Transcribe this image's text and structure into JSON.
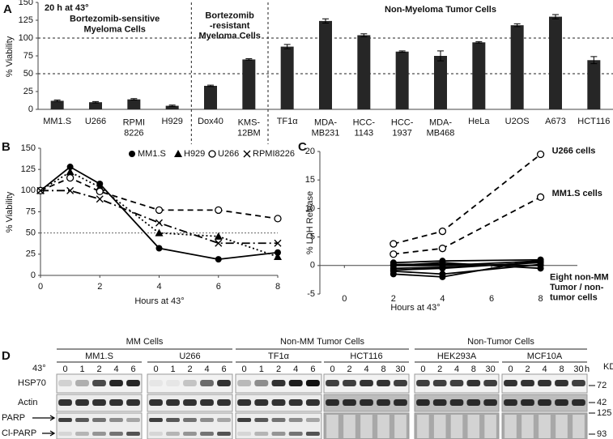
{
  "chart_data": [
    {
      "type": "bar",
      "panel": "A",
      "title": "20 h at 43°",
      "y_label": "% Viability",
      "categories": [
        "MM1.S",
        "U266",
        "RPMI\n8226",
        "H929",
        "Dox40",
        "KMS-\n12BM",
        "TF1α",
        "MDA-\nMB231",
        "HCC-\n1143",
        "HCC-\n1937",
        "MDA-\nMB468",
        "HeLa",
        "U2OS",
        "A673",
        "HCT116"
      ],
      "values": [
        12,
        10,
        14,
        5,
        33,
        70,
        88,
        124,
        104,
        81,
        75,
        94,
        118,
        130,
        69
      ],
      "errors": [
        1,
        1,
        1,
        1,
        1,
        1,
        3,
        3,
        2,
        1,
        7,
        1,
        2,
        3,
        5
      ],
      "color": "#262626",
      "ylim": [
        0,
        150
      ],
      "yticks": [
        0,
        25,
        50,
        75,
        100,
        125,
        150
      ],
      "reference_lines": [
        100,
        50
      ],
      "groups": [
        "Bortezomib-sensitive\nMyeloma Cells",
        "Bortezomib\n-resistant\nMyeloma Cells",
        "Non-Myeloma Tumor Cells"
      ]
    },
    {
      "type": "line",
      "panel": "B",
      "x_label": "Hours at 43°",
      "y_label": "% Viability",
      "x": [
        0,
        1,
        2,
        4,
        6,
        8
      ],
      "xlim": [
        0,
        8
      ],
      "xticks": [
        0,
        2,
        4,
        6,
        8
      ],
      "ylim": [
        0,
        150
      ],
      "yticks": [
        0,
        25,
        50,
        75,
        100,
        125,
        150
      ],
      "reference_lines": [
        50
      ],
      "legend": "top",
      "series": [
        {
          "name": "MM1.S",
          "color": "#000000",
          "marker": "filled-circle",
          "dash": "solid",
          "values": [
            100,
            128,
            108,
            32,
            19,
            27
          ]
        },
        {
          "name": "H929",
          "color": "#000000",
          "marker": "filled-triangle",
          "dash": "dotted",
          "values": [
            100,
            122,
            104,
            50,
            46,
            22
          ]
        },
        {
          "name": "U266",
          "color": "#000000",
          "marker": "open-circle",
          "dash": "dashed",
          "values": [
            100,
            115,
            99,
            77,
            77,
            67
          ]
        },
        {
          "name": "RPMI8226",
          "color": "#000000",
          "marker": "cross",
          "dash": "dash-dot",
          "values": [
            100,
            100,
            90,
            62,
            38,
            38
          ]
        }
      ]
    },
    {
      "type": "line",
      "panel": "C",
      "x_label": "Hours at 43°",
      "y_label": "% LDH Release",
      "x": [
        2,
        4,
        8
      ],
      "xlim": [
        -1,
        9.5
      ],
      "xticks": [
        0,
        2,
        4,
        6,
        8
      ],
      "ylim": [
        -5,
        20
      ],
      "yticks": [
        -5,
        0,
        5,
        10,
        15,
        20
      ],
      "annotation": "Eight non-MM\nTumor / non-\ntumor cells",
      "series": [
        {
          "name": "U266 cells",
          "color": "#000000",
          "marker": "open-circle",
          "dash": "dashed",
          "values": [
            3.8,
            6,
            19.5
          ]
        },
        {
          "name": "MM1.S cells",
          "color": "#000000",
          "marker": "open-circle",
          "dash": "dashed",
          "values": [
            2,
            3,
            12
          ]
        },
        {
          "color": "#000000",
          "marker": "filled-circle",
          "dash": "solid",
          "values": [
            0.5,
            0.8,
            1
          ]
        },
        {
          "color": "#000000",
          "marker": "filled-circle",
          "dash": "solid",
          "values": [
            0,
            0,
            0.8
          ]
        },
        {
          "color": "#000000",
          "marker": "filled-circle",
          "dash": "solid",
          "values": [
            -0.5,
            -0.3,
            0.5
          ]
        },
        {
          "color": "#000000",
          "marker": "filled-circle",
          "dash": "solid",
          "values": [
            -1,
            -1.5,
            0.2
          ]
        },
        {
          "color": "#000000",
          "marker": "filled-circle",
          "dash": "solid",
          "values": [
            0,
            0.5,
            -0.5
          ]
        },
        {
          "color": "#000000",
          "marker": "filled-circle",
          "dash": "solid",
          "values": [
            -1.5,
            -2,
            1
          ]
        },
        {
          "color": "#000000",
          "marker": "filled-circle",
          "dash": "solid",
          "values": [
            0.2,
            0.2,
            0
          ]
        },
        {
          "color": "#000000",
          "marker": "filled-circle",
          "dash": "solid",
          "values": [
            -0.8,
            -0.5,
            0.6
          ]
        }
      ]
    }
  ],
  "blots": {
    "panel": "D",
    "time_label": "43°",
    "unit": "h",
    "kd_label": "KD",
    "rows": [
      "HSP70",
      "Actin",
      "PARP",
      "Cl-PARP"
    ],
    "markers": [
      "72",
      "42",
      "125",
      "93"
    ],
    "groups": [
      {
        "label": "MM Cells",
        "cells": [
          {
            "name": "MM1.S",
            "lanes": [
              "0",
              "1",
              "2",
              "4",
              "6"
            ]
          },
          {
            "name": "U266",
            "lanes": [
              "0",
              "1",
              "2",
              "4",
              "6"
            ]
          }
        ]
      },
      {
        "label": "Non-MM Tumor Cells",
        "cells": [
          {
            "name": "TF1α",
            "lanes": [
              "0",
              "1",
              "2",
              "4",
              "6"
            ]
          },
          {
            "name": "HCT116",
            "lanes": [
              "0",
              "2",
              "4",
              "8",
              "30"
            ]
          }
        ]
      },
      {
        "label": "Non-Tumor Cells",
        "cells": [
          {
            "name": "HEK293A",
            "lanes": [
              "0",
              "2",
              "4",
              "8",
              "30"
            ]
          },
          {
            "name": "MCF10A",
            "lanes": [
              "0",
              "2",
              "4",
              "8",
              "30"
            ]
          }
        ]
      }
    ]
  }
}
